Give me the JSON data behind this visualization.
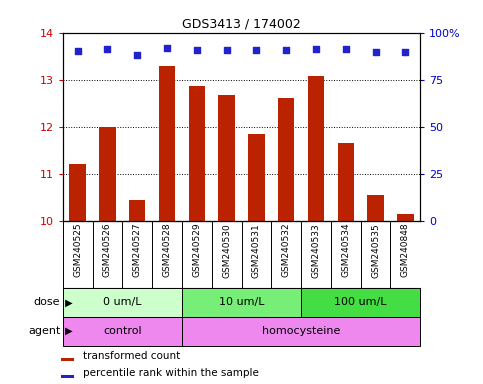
{
  "title": "GDS3413 / 174002",
  "samples": [
    "GSM240525",
    "GSM240526",
    "GSM240527",
    "GSM240528",
    "GSM240529",
    "GSM240530",
    "GSM240531",
    "GSM240532",
    "GSM240533",
    "GSM240534",
    "GSM240535",
    "GSM240848"
  ],
  "bar_values": [
    11.2,
    12.0,
    10.45,
    13.3,
    12.87,
    12.67,
    11.85,
    12.6,
    13.07,
    11.65,
    10.55,
    10.15
  ],
  "percentile_values": [
    13.62,
    13.66,
    13.52,
    13.68,
    13.64,
    13.64,
    13.64,
    13.64,
    13.66,
    13.66,
    13.58,
    13.58
  ],
  "bar_color": "#bb2200",
  "dot_color": "#2222cc",
  "ylim": [
    10,
    14
  ],
  "yticks_left": [
    10,
    11,
    12,
    13,
    14
  ],
  "tick_color_left": "#cc0000",
  "tick_color_right": "#0000cc",
  "dose_groups": [
    {
      "label": "0 um/L",
      "start": 0,
      "end": 4,
      "color": "#ccffcc"
    },
    {
      "label": "10 um/L",
      "start": 4,
      "end": 8,
      "color": "#77ee77"
    },
    {
      "label": "100 um/L",
      "start": 8,
      "end": 12,
      "color": "#44dd44"
    }
  ],
  "agent_groups": [
    {
      "label": "control",
      "start": 0,
      "end": 4,
      "color": "#ee88ee"
    },
    {
      "label": "homocysteine",
      "start": 4,
      "end": 12,
      "color": "#ee88ee"
    }
  ],
  "legend_bar_label": "transformed count",
  "legend_dot_label": "percentile rank within the sample",
  "background_color": "#ffffff",
  "sample_bg_color": "#cccccc",
  "grid_color": "#000000"
}
